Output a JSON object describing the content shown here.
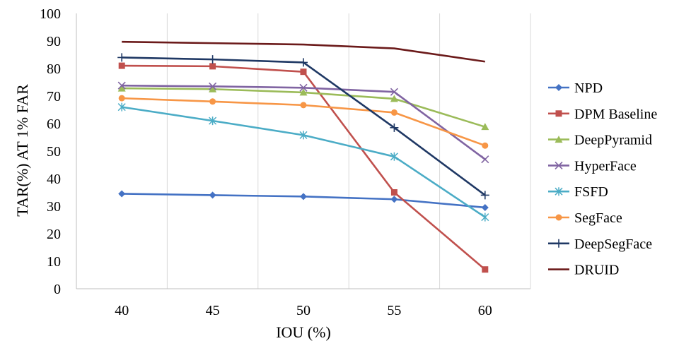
{
  "chart_data": {
    "type": "line",
    "title": "",
    "xlabel": "IOU (%)",
    "ylabel": "TAR(%) AT 1% FAR",
    "categories": [
      "40",
      "45",
      "50",
      "55",
      "60"
    ],
    "ylim": [
      0,
      100
    ],
    "yticks": [
      "0",
      "10",
      "20",
      "30",
      "40",
      "50",
      "60",
      "70",
      "80",
      "90",
      "100"
    ],
    "grid": "vertical",
    "legend_position": "right",
    "series": [
      {
        "name": "NPD",
        "color": "#4472C4",
        "marker": "diamond",
        "values": [
          34.5,
          34.0,
          33.5,
          32.5,
          29.5
        ]
      },
      {
        "name": "DPM Baseline",
        "color": "#C0504D",
        "marker": "square",
        "values": [
          81.0,
          80.8,
          78.8,
          35.0,
          7.0
        ]
      },
      {
        "name": "DeepPyramid",
        "color": "#9BBB59",
        "marker": "triangle",
        "values": [
          72.8,
          72.5,
          71.3,
          69.0,
          58.8
        ]
      },
      {
        "name": "HyperFace",
        "color": "#8064A2",
        "marker": "x",
        "values": [
          73.8,
          73.5,
          73.0,
          71.5,
          47.0
        ]
      },
      {
        "name": "FSFD",
        "color": "#4BACC6",
        "marker": "asterisk",
        "values": [
          66.0,
          61.0,
          55.8,
          48.0,
          26.0
        ]
      },
      {
        "name": "SegFace",
        "color": "#F79646",
        "marker": "circle",
        "values": [
          69.2,
          68.0,
          66.7,
          64.0,
          52.0
        ]
      },
      {
        "name": "DeepSegFace",
        "color": "#1F3864",
        "marker": "plus",
        "values": [
          84.0,
          83.3,
          82.2,
          58.5,
          34.0
        ]
      },
      {
        "name": "DRUID",
        "color": "#6B1A1A",
        "marker": "none",
        "values": [
          89.7,
          89.2,
          88.7,
          87.3,
          82.5
        ]
      }
    ]
  }
}
